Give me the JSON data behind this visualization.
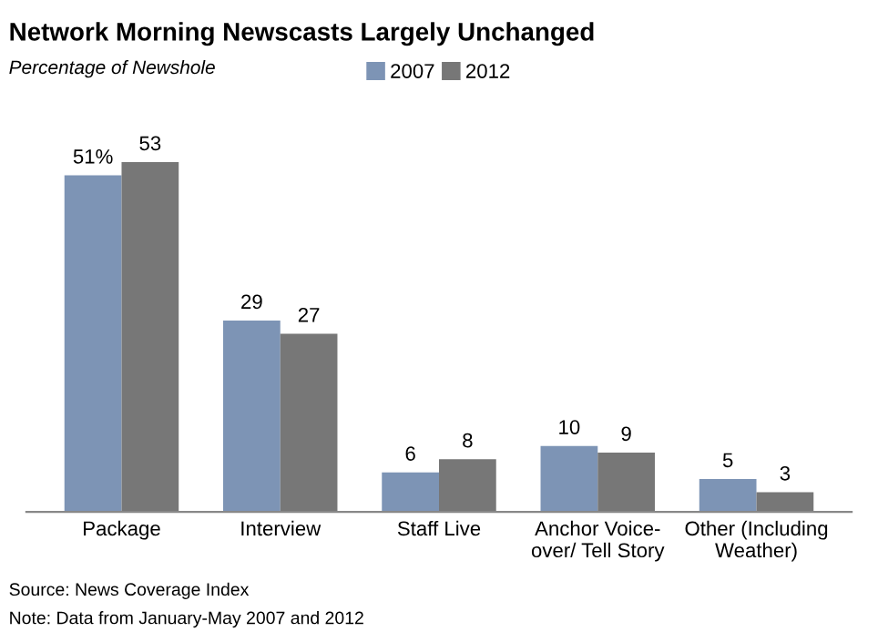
{
  "chart_data": {
    "type": "bar",
    "title": "Network Morning Newscasts Largely Unchanged",
    "subtitle": "Percentage of Newshole",
    "categories": [
      "Package",
      "Interview",
      "Staff Live",
      "Anchor Voice-\nover/ Tell Story",
      "Other (Including\nWeather)"
    ],
    "series": [
      {
        "name": "2007",
        "color": "#7d94b5",
        "values": [
          51,
          29,
          6,
          10,
          5
        ],
        "value_labels": [
          "51%",
          "29",
          "6",
          "10",
          "5"
        ]
      },
      {
        "name": "2012",
        "color": "#777777",
        "values": [
          53,
          27,
          8,
          9,
          3
        ],
        "value_labels": [
          "53",
          "27",
          "8",
          "9",
          "3"
        ]
      }
    ],
    "legend": "top",
    "grid": false,
    "annotations": [
      "Source: News Coverage Index",
      "Note: Data from January-May 2007 and 2012"
    ]
  }
}
